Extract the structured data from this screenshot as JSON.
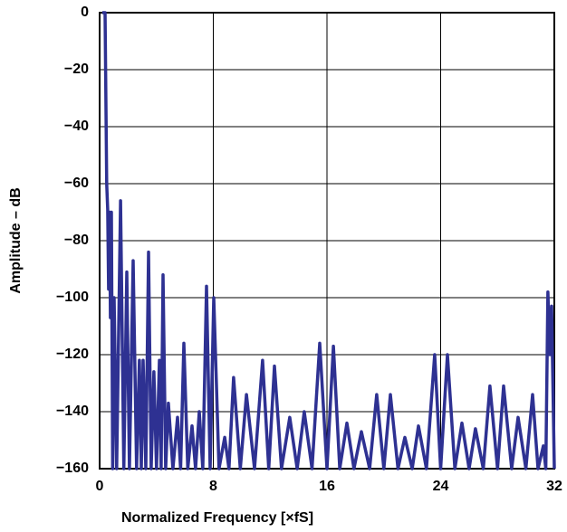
{
  "chart_data": {
    "type": "line",
    "xlabel": "Normalized Frequency [×fS]",
    "ylabel": "Amplitude – dB",
    "color": "#2e3192",
    "grid": true,
    "xlim": [
      0,
      32
    ],
    "xticks": [
      0,
      8,
      16,
      24,
      32
    ],
    "ylim": [
      -160,
      0
    ],
    "yticks": [
      0,
      {
        "value": -20,
        "label": "−20"
      },
      {
        "value": -40,
        "label": "−40"
      },
      {
        "value": -60,
        "label": "−60"
      },
      {
        "value": -80,
        "label": "−80"
      },
      {
        "value": -100,
        "label": "−100"
      },
      {
        "value": -120,
        "label": "−120"
      },
      {
        "value": -140,
        "label": "−140"
      },
      {
        "value": -160,
        "label": "−160"
      }
    ],
    "x": [
      0.19,
      0.38,
      0.5,
      0.57,
      0.63,
      0.7,
      0.76,
      0.83,
      0.92,
      1.02,
      1.2,
      1.47,
      1.7,
      1.91,
      2.1,
      2.36,
      2.6,
      2.8,
      2.93,
      3.06,
      3.25,
      3.44,
      3.63,
      3.82,
      4.0,
      4.21,
      4.33,
      4.46,
      4.65,
      4.84,
      5.16,
      5.48,
      5.7,
      5.93,
      6.2,
      6.5,
      6.75,
      7.01,
      7.26,
      7.52,
      7.78,
      8.03,
      8.4,
      8.8,
      9.1,
      9.43,
      9.9,
      10.33,
      10.9,
      11.47,
      11.9,
      12.3,
      12.8,
      13.38,
      13.9,
      14.4,
      14.95,
      15.49,
      16.0,
      16.45,
      16.9,
      17.4,
      17.9,
      18.42,
      19.0,
      19.5,
      20.0,
      20.46,
      21.0,
      21.48,
      22.0,
      22.44,
      23.0,
      23.58,
      24.0,
      24.48,
      25.0,
      25.5,
      26.0,
      26.45,
      27.0,
      27.47,
      28.0,
      28.43,
      29.0,
      29.45,
      30.0,
      30.47,
      30.85,
      31.23,
      31.4,
      31.55,
      31.68,
      31.81,
      32
    ],
    "values": [
      0,
      0,
      -60,
      -69,
      -97,
      -70,
      -107,
      -70,
      -160,
      -100,
      -160,
      -66,
      -160,
      -91,
      -160,
      -87,
      -160,
      -122,
      -160,
      -122,
      -160,
      -84,
      -160,
      -126,
      -160,
      -122,
      -160,
      -92,
      -160,
      -137,
      -160,
      -142,
      -160,
      -116,
      -160,
      -145,
      -160,
      -140,
      -160,
      -96,
      -160,
      -100,
      -160,
      -149,
      -160,
      -128,
      -160,
      -134,
      -160,
      -122,
      -160,
      -124,
      -160,
      -142,
      -160,
      -140,
      -160,
      -116,
      -160,
      -117,
      -160,
      -144,
      -160,
      -147,
      -160,
      -134,
      -160,
      -134,
      -160,
      -149,
      -160,
      -145,
      -160,
      -120,
      -160,
      -120,
      -160,
      -144,
      -160,
      -146,
      -160,
      -131,
      -160,
      -131,
      -160,
      -142,
      -160,
      -134,
      -160,
      -152,
      -160,
      -98,
      -120,
      -103,
      -160
    ]
  }
}
